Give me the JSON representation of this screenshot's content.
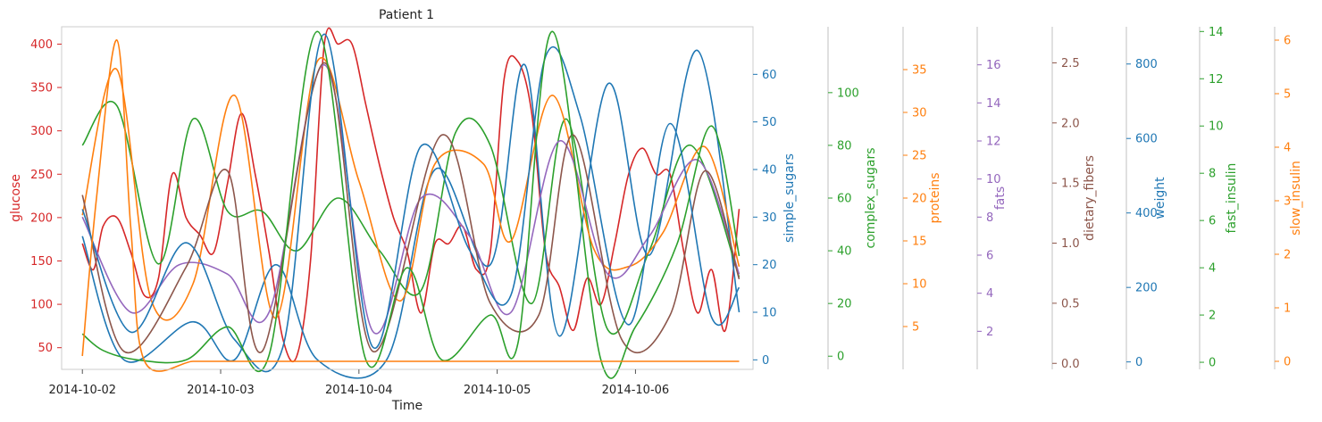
{
  "chart_data": {
    "type": "line",
    "title": "Patient 1",
    "xlabel": "Time",
    "x_ticks": [
      "2014-10-02",
      "2014-10-03",
      "2014-10-04",
      "2014-10-05",
      "2014-10-06"
    ],
    "xlim": [
      -0.15,
      4.85
    ],
    "grid": false,
    "axes": [
      {
        "label": "glucose",
        "color": "#d62728",
        "range": [
          25,
          420
        ],
        "ticks": [
          50,
          100,
          150,
          200,
          250,
          300,
          350,
          400
        ]
      },
      {
        "label": "simple_sugars",
        "color": "#1f77b4",
        "range": [
          -2,
          70
        ],
        "ticks": [
          0,
          10,
          20,
          30,
          40,
          50,
          60
        ]
      },
      {
        "label": "complex_sugars",
        "color": "#2ca02c",
        "range": [
          -5,
          125
        ],
        "ticks": [
          0,
          20,
          40,
          60,
          80,
          100
        ]
      },
      {
        "label": "proteins",
        "color": "#ff7f0e",
        "range": [
          0,
          40
        ],
        "ticks": [
          5,
          10,
          15,
          20,
          25,
          30,
          35
        ]
      },
      {
        "label": "fats",
        "color": "#9467bd",
        "range": [
          0,
          18
        ],
        "ticks": [
          2,
          4,
          6,
          8,
          10,
          12,
          14,
          16
        ]
      },
      {
        "label": "dietary_fibers",
        "color": "#8c564b",
        "range": [
          -0.05,
          2.8
        ],
        "ticks": [
          "0.0",
          "0.5",
          "1.0",
          "1.5",
          "2.0",
          "2.5"
        ]
      },
      {
        "label": "weight",
        "color": "#1f77b4",
        "range": [
          -20,
          900
        ],
        "ticks": [
          0,
          200,
          400,
          600,
          800
        ]
      },
      {
        "label": "fast_insulin",
        "color": "#2ca02c",
        "range": [
          -0.3,
          14.2
        ],
        "ticks": [
          0,
          2,
          4,
          6,
          8,
          10,
          12,
          14
        ]
      },
      {
        "label": "slow_insulin",
        "color": "#ff7f0e",
        "range": [
          -0.15,
          6.25
        ],
        "ticks": [
          0,
          1,
          2,
          3,
          4,
          5,
          6
        ]
      }
    ],
    "series": [
      {
        "axis": 0,
        "color": "#d62728",
        "x": [
          0,
          0.08,
          0.15,
          0.25,
          0.35,
          0.45,
          0.55,
          0.65,
          0.75,
          0.85,
          0.95,
          1.05,
          1.15,
          1.25,
          1.35,
          1.45,
          1.55,
          1.65,
          1.75,
          1.85,
          1.95,
          2.05,
          2.15,
          2.25,
          2.35,
          2.45,
          2.55,
          2.65,
          2.75,
          2.85,
          2.95,
          3.05,
          3.15,
          3.25,
          3.35,
          3.45,
          3.55,
          3.65,
          3.75,
          3.85,
          3.95,
          4.05,
          4.15,
          4.25,
          4.35,
          4.45,
          4.55,
          4.65,
          4.75
        ],
        "y": [
          170,
          140,
          190,
          200,
          160,
          110,
          130,
          250,
          200,
          180,
          160,
          240,
          320,
          250,
          160,
          60,
          40,
          150,
          400,
          400,
          400,
          330,
          260,
          200,
          160,
          90,
          170,
          170,
          190,
          140,
          160,
          360,
          380,
          320,
          160,
          120,
          70,
          130,
          100,
          170,
          250,
          280,
          250,
          250,
          160,
          90,
          140,
          70,
          210
        ]
      },
      {
        "axis": 1,
        "color": "#1f77b4",
        "x": [
          0,
          0.3,
          0.8,
          1.1,
          1.4,
          1.7,
          2.2,
          2.55,
          2.95,
          3.2,
          3.45,
          3.8,
          4.1,
          4.45,
          4.75
        ],
        "y": [
          26,
          0,
          8,
          0,
          20,
          0,
          0,
          40,
          20,
          62,
          5,
          58,
          22,
          65,
          10
        ]
      },
      {
        "axis": 2,
        "color": "#2ca02c",
        "x": [
          0,
          0.25,
          0.55,
          0.8,
          1.05,
          1.3,
          1.55,
          1.85,
          2.15,
          2.45,
          2.7,
          2.95,
          3.25,
          3.5,
          3.8,
          4.1,
          4.4,
          4.75
        ],
        "y": [
          80,
          95,
          35,
          90,
          55,
          55,
          40,
          60,
          40,
          25,
          85,
          80,
          20,
          90,
          10,
          40,
          80,
          30
        ]
      },
      {
        "axis": 3,
        "color": "#ff7f0e",
        "x": [
          0,
          0.25,
          0.5,
          0.8,
          1.1,
          1.4,
          1.7,
          2.0,
          2.3,
          2.55,
          2.9,
          3.1,
          3.4,
          3.7,
          3.95,
          4.2,
          4.5,
          4.75
        ],
        "y": [
          18,
          35,
          8,
          10,
          32,
          6,
          36,
          22,
          8,
          24,
          24,
          15,
          32,
          14,
          12,
          16,
          26,
          12
        ]
      },
      {
        "axis": 4,
        "color": "#9467bd",
        "x": [
          0,
          0.35,
          0.7,
          1.05,
          1.35,
          1.75,
          2.1,
          2.45,
          2.8,
          3.1,
          3.45,
          3.8,
          4.1,
          4.45,
          4.75
        ],
        "y": [
          8,
          3,
          5.5,
          5,
          3,
          16,
          2,
          9,
          7,
          3,
          12,
          5,
          7,
          11,
          5
        ]
      },
      {
        "axis": 5,
        "color": "#8c564b",
        "x": [
          0,
          0.3,
          0.75,
          1.05,
          1.3,
          1.75,
          2.1,
          2.6,
          2.95,
          3.3,
          3.55,
          3.9,
          4.25,
          4.5,
          4.75
        ],
        "y": [
          1.4,
          0.1,
          0.8,
          1.6,
          0.1,
          2.5,
          0.1,
          1.9,
          0.5,
          0.4,
          1.9,
          0.2,
          0.4,
          1.6,
          0.7
        ]
      },
      {
        "axis": 6,
        "color": "#1f77b4",
        "x": [
          0,
          0.35,
          0.75,
          1.1,
          1.45,
          1.75,
          2.1,
          2.45,
          2.8,
          3.1,
          3.35,
          3.6,
          3.95,
          4.25,
          4.55,
          4.75
        ],
        "y": [
          410,
          80,
          320,
          60,
          40,
          880,
          40,
          580,
          300,
          180,
          820,
          660,
          100,
          640,
          120,
          200
        ]
      },
      {
        "axis": 7,
        "color": "#2ca02c",
        "x": [
          0,
          0.15,
          0.4,
          0.75,
          1.05,
          1.35,
          1.7,
          2.05,
          2.35,
          2.6,
          2.95,
          3.15,
          3.4,
          3.75,
          4.0,
          4.3,
          4.55,
          4.75
        ],
        "y": [
          1.2,
          0.5,
          0.1,
          0.1,
          1.5,
          0.3,
          14,
          0.1,
          4,
          0.1,
          2,
          0.8,
          14,
          0.1,
          1.5,
          5,
          10,
          4.5
        ]
      },
      {
        "axis": 8,
        "color": "#ff7f0e",
        "x": [
          0,
          0.1,
          0.25,
          0.35,
          0.45,
          0.8,
          1.0,
          1.2,
          1.5,
          1.7,
          1.8,
          1.95,
          2.05,
          2.3,
          4.75
        ],
        "y": [
          0.1,
          3.0,
          6.0,
          2.5,
          0.0,
          0.0,
          0.0,
          0.0,
          0.0,
          0.0,
          0.0,
          0.0,
          0.0,
          0.0,
          0.0
        ]
      }
    ]
  }
}
